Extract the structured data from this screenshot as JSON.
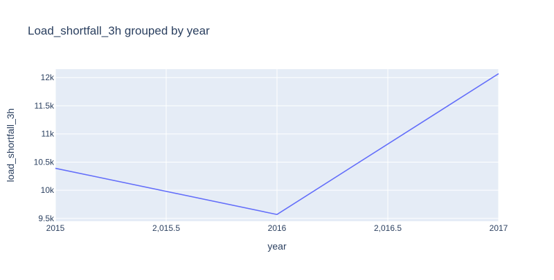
{
  "chart_data": {
    "type": "line",
    "title": "Load_shortfall_3h grouped by year",
    "xlabel": "year",
    "ylabel": "load_shortfall_3h",
    "x": [
      2015,
      2016,
      2017
    ],
    "series": [
      {
        "values": [
          10390,
          9570,
          12070
        ]
      }
    ],
    "xlim": [
      2015,
      2017
    ],
    "ylim": [
      9450,
      12150
    ],
    "xticks": [
      {
        "value": 2015,
        "label": "2015"
      },
      {
        "value": 2015.5,
        "label": "2,015.5"
      },
      {
        "value": 2016,
        "label": "2016"
      },
      {
        "value": 2016.5,
        "label": "2,016.5"
      },
      {
        "value": 2017,
        "label": "2017"
      }
    ],
    "yticks": [
      {
        "value": 9500,
        "label": "9.5k"
      },
      {
        "value": 10000,
        "label": "10k"
      },
      {
        "value": 10500,
        "label": "10.5k"
      },
      {
        "value": 11000,
        "label": "11k"
      },
      {
        "value": 11500,
        "label": "11.5k"
      },
      {
        "value": 12000,
        "label": "12k"
      }
    ],
    "grid": true,
    "colors": {
      "line": "#636efa",
      "plot_bg": "#e5ecf6",
      "grid": "#ffffff",
      "text": "#2a3f5f"
    }
  }
}
